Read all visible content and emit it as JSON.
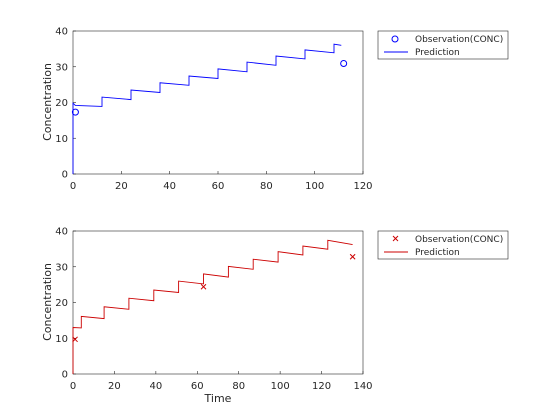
{
  "chart_data": [
    {
      "type": "line",
      "xlabel": "",
      "ylabel": "Concentration",
      "xlim": [
        0,
        120
      ],
      "ylim": [
        0,
        40
      ],
      "xticks": [
        0,
        20,
        40,
        60,
        80,
        100,
        120
      ],
      "yticks": [
        0,
        10,
        20,
        30,
        40
      ],
      "legend": {
        "location": "outside-top-right"
      },
      "series": [
        {
          "name": "Observation(CONC)",
          "kind": "scatter",
          "marker": "circle",
          "color": "#0000ff",
          "x": [
            1,
            112
          ],
          "y": [
            17.3,
            30.9
          ]
        },
        {
          "name": "Prediction",
          "kind": "line",
          "color": "#0000ff",
          "x": [
            0,
            0,
            1,
            12,
            12,
            24,
            24,
            36,
            36,
            48,
            48,
            60,
            60,
            72,
            72,
            84,
            84,
            96,
            96,
            108,
            108,
            111
          ],
          "y": [
            0,
            19.8,
            19.2,
            18.9,
            21.5,
            20.8,
            23.5,
            22.8,
            25.5,
            24.8,
            27.4,
            26.7,
            29.4,
            28.6,
            31.3,
            30.4,
            33.0,
            32.2,
            34.7,
            33.9,
            36.3,
            36.0
          ]
        }
      ]
    },
    {
      "type": "line",
      "xlabel": "Time",
      "ylabel": "Concentration",
      "xlim": [
        0,
        140
      ],
      "ylim": [
        0,
        40
      ],
      "xticks": [
        0,
        20,
        40,
        60,
        80,
        100,
        120,
        140
      ],
      "yticks": [
        0,
        10,
        20,
        30,
        40
      ],
      "legend": {
        "location": "outside-top-right"
      },
      "series": [
        {
          "name": "Observation(CONC)",
          "kind": "scatter",
          "marker": "x",
          "color": "#cc0000",
          "x": [
            1,
            63,
            135
          ],
          "y": [
            9.7,
            24.4,
            32.8
          ]
        },
        {
          "name": "Prediction",
          "kind": "line",
          "color": "#cc0000",
          "x": [
            0,
            0,
            4,
            4,
            15,
            15,
            27,
            27,
            39,
            39,
            51,
            51,
            63,
            63,
            75,
            75,
            87,
            87,
            99,
            99,
            111,
            111,
            123,
            123,
            135
          ],
          "y": [
            0,
            13.0,
            12.9,
            16.1,
            15.5,
            18.8,
            18.1,
            21.2,
            20.5,
            23.5,
            22.8,
            26.0,
            25.2,
            28.0,
            27.1,
            30.1,
            29.3,
            32.1,
            31.3,
            34.2,
            33.3,
            35.8,
            34.9,
            37.4,
            36.2
          ]
        }
      ]
    }
  ]
}
